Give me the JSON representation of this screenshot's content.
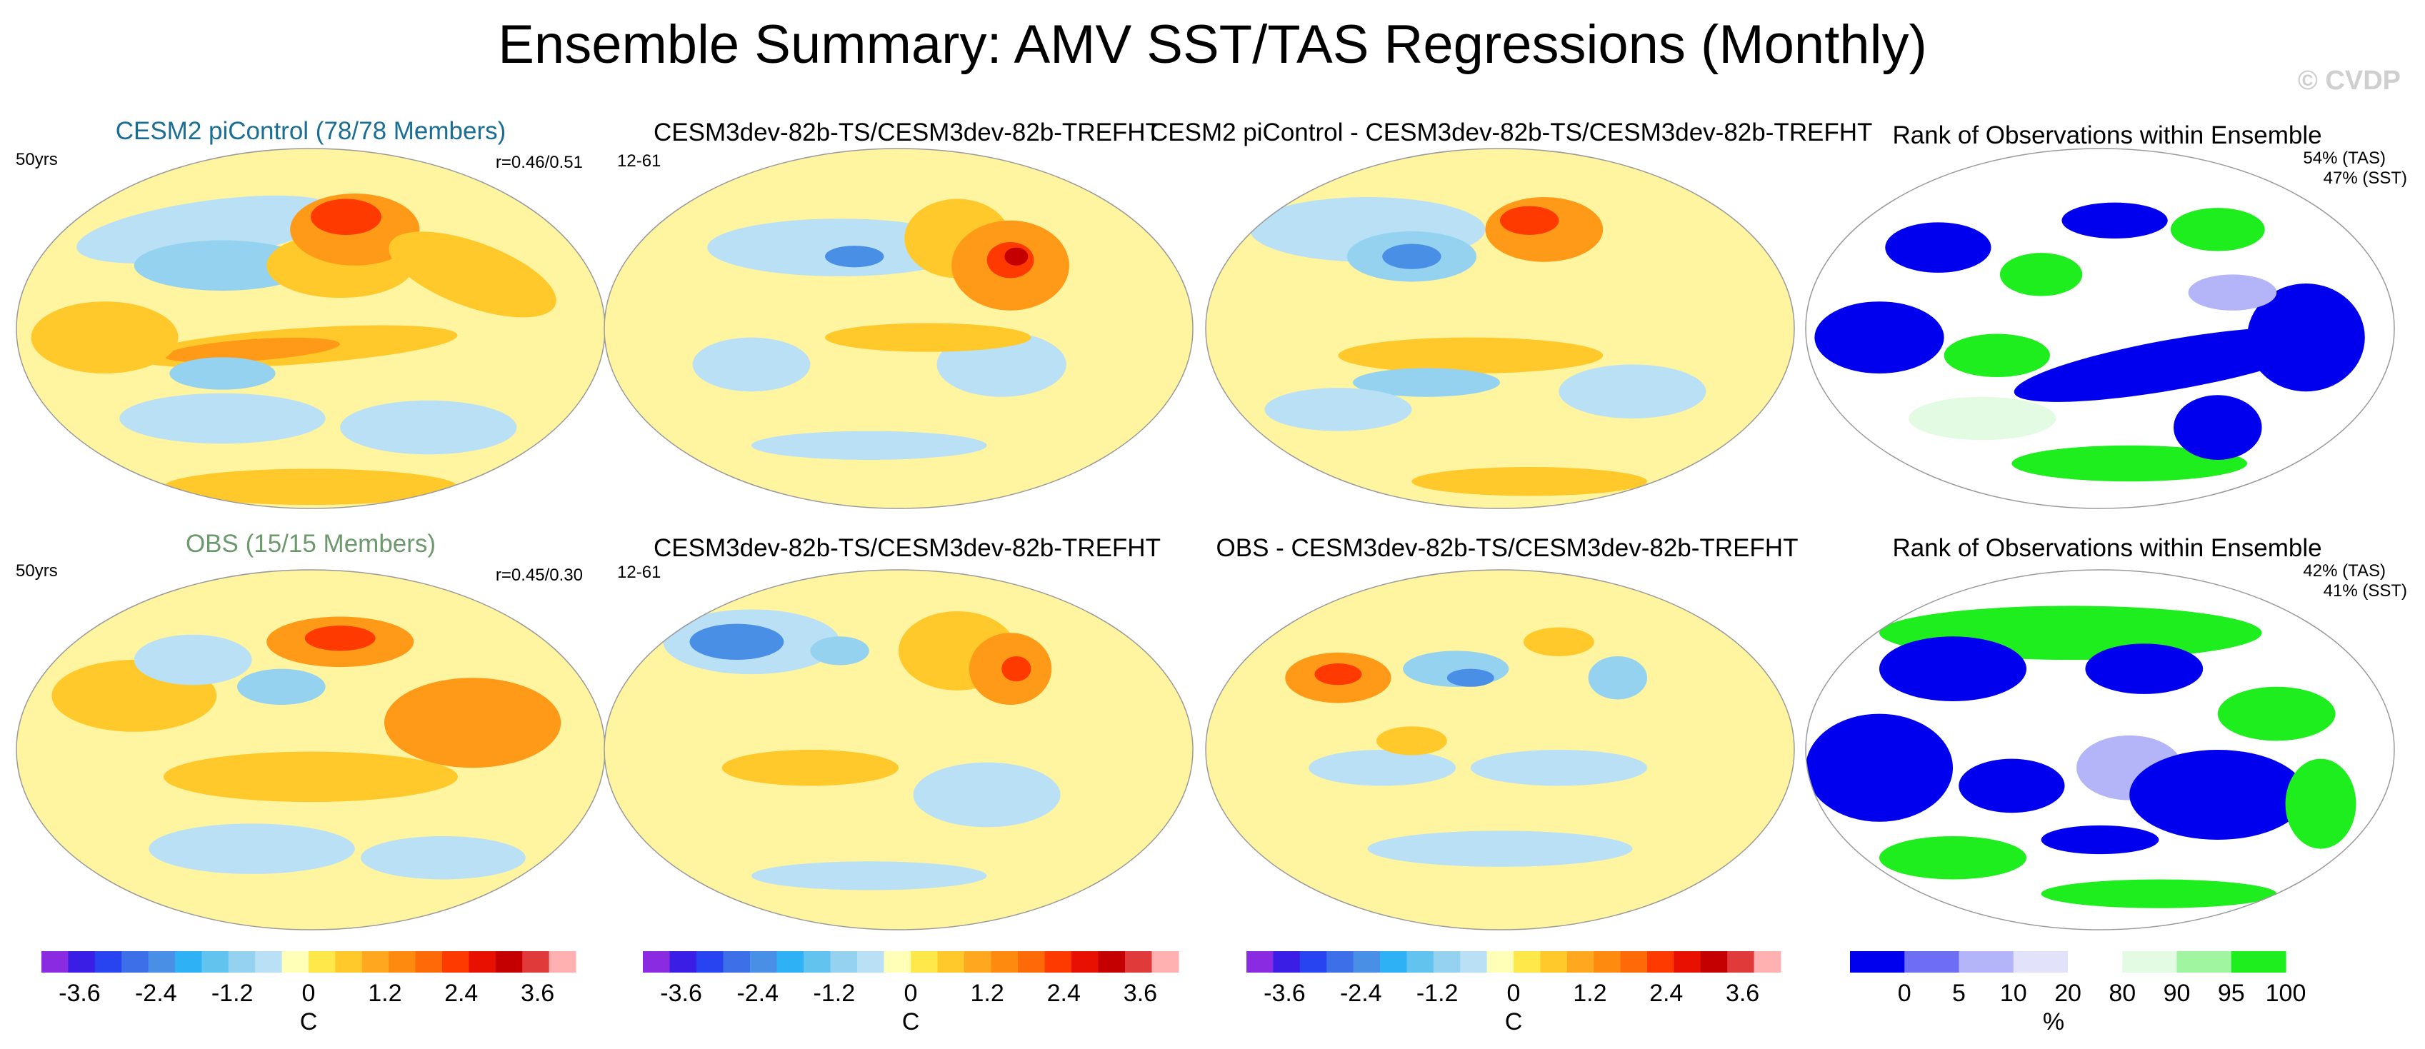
{
  "title": "Ensemble Summary: AMV SST/TAS Regressions (Monthly)",
  "watermark": "© CVDP",
  "chart_data": [
    {
      "type": "heatmap",
      "panel": "row1-col1",
      "title": "CESM2 piControl (78/78 Members)",
      "left_label": "50yrs",
      "right_label": "r=0.46/0.51",
      "colorbar": "temp"
    },
    {
      "type": "heatmap",
      "panel": "row1-col2",
      "title": "CESM3dev-82b-TS/CESM3dev-82b-TREFHT",
      "left_label": "12-61",
      "colorbar": "temp"
    },
    {
      "type": "heatmap",
      "panel": "row1-col3",
      "title": "CESM2 piControl - CESM3dev-82b-TS/CESM3dev-82b-TREFHT",
      "colorbar": "temp"
    },
    {
      "type": "heatmap",
      "panel": "row1-col4",
      "title": "Rank of Observations within Ensemble",
      "right_label_1": "54% (TAS)",
      "right_label_2": "47% (SST)",
      "colorbar": "rank"
    },
    {
      "type": "heatmap",
      "panel": "row2-col1",
      "title": "OBS (15/15 Members)",
      "left_label": "50yrs",
      "right_label": "r=0.45/0.30",
      "colorbar": "temp"
    },
    {
      "type": "heatmap",
      "panel": "row2-col2",
      "title": "CESM3dev-82b-TS/CESM3dev-82b-TREFHT",
      "left_label": "12-61",
      "colorbar": "temp"
    },
    {
      "type": "heatmap",
      "panel": "row2-col3",
      "title": "OBS - CESM3dev-82b-TS/CESM3dev-82b-TREFHT",
      "colorbar": "temp"
    },
    {
      "type": "heatmap",
      "panel": "row2-col4",
      "title": "Rank of Observations within Ensemble",
      "right_label_1": "42% (TAS)",
      "right_label_2": "41% (SST)",
      "colorbar": "rank"
    }
  ],
  "colorbars": {
    "temp": {
      "unit": "C",
      "tick_labels": [
        "-3.6",
        "-2.4",
        "-1.2",
        "0",
        "1.2",
        "2.4",
        "3.6"
      ],
      "tick_values": [
        -3.6,
        -2.4,
        -1.2,
        0,
        1.2,
        2.4,
        3.6
      ],
      "range": [
        -4.2,
        4.2
      ],
      "colors": [
        "#8a2be2",
        "#3a1ee6",
        "#2844f0",
        "#3c6fe8",
        "#4a8fe6",
        "#2fb2f5",
        "#63c3ef",
        "#94d2f0",
        "#b9e0f5",
        "#ffffb8",
        "#ffe84a",
        "#ffc92b",
        "#ffa81f",
        "#ff8a10",
        "#ff6a08",
        "#ff3a00",
        "#e81000",
        "#c40000",
        "#e03a3a",
        "#ffb0b0"
      ]
    },
    "rank": {
      "unit": "%",
      "tick_labels": [
        "0",
        "5",
        "10",
        "20",
        "80",
        "90",
        "95",
        "100"
      ],
      "bins": [
        0,
        5,
        10,
        20,
        80,
        90,
        95,
        100
      ],
      "colors": [
        "#0000ee",
        "#6e6ef5",
        "#b4b4f8",
        "#e2e2fb",
        "#ffffff",
        "#e2fbe2",
        "#a0f5a0",
        "#1eee1e"
      ]
    }
  }
}
